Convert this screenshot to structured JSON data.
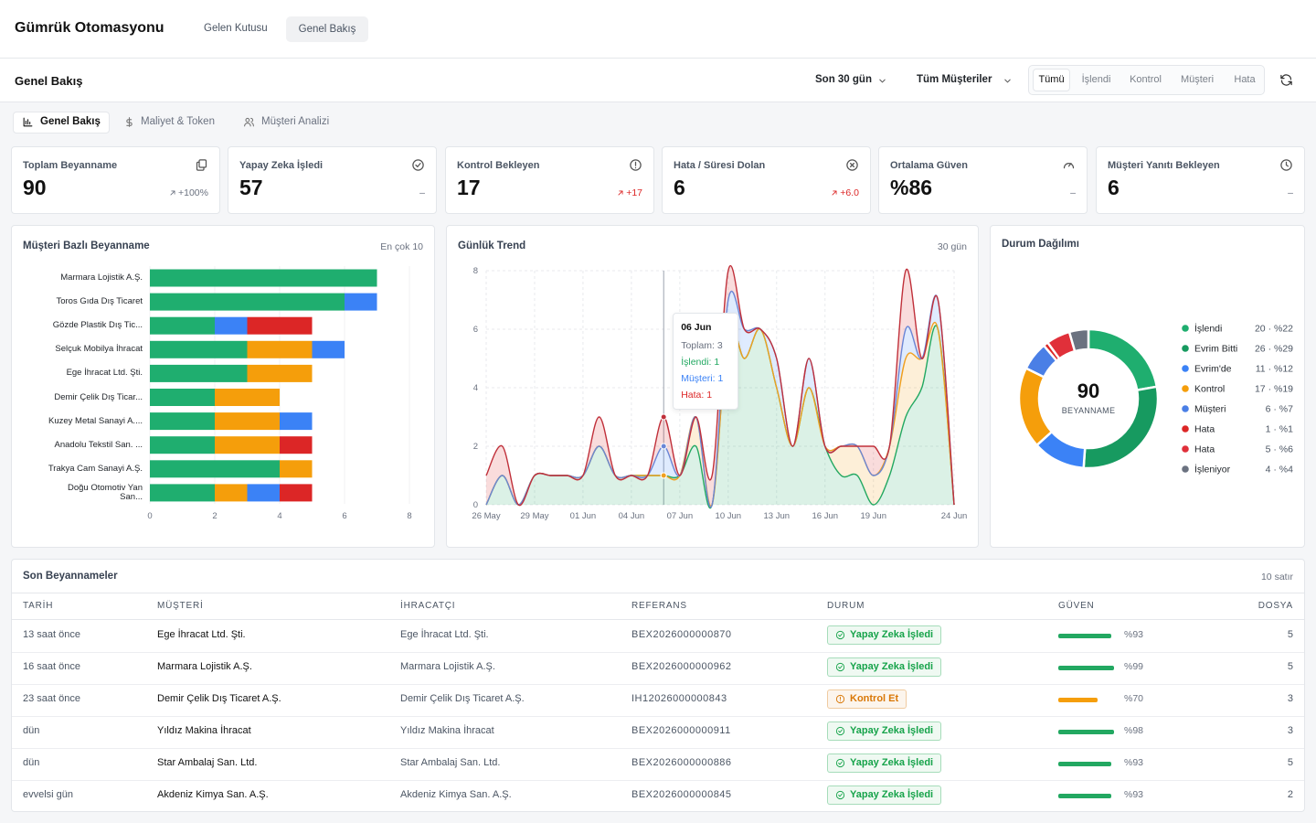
{
  "header": {
    "title": "Gümrük Otomasyonu",
    "nav": [
      "Gelen Kutusu",
      "Genel Bakış"
    ]
  },
  "toolbar": {
    "title": "Genel Bakış",
    "filters": [
      "Son 30 gün",
      "Tüm Müşteriler"
    ],
    "segments": [
      "Tümü",
      "İşlendi",
      "Kontrol",
      "Müşteri",
      "Hata"
    ]
  },
  "tabs": [
    "Genel Bakış",
    "Maliyet & Token",
    "Müşteri Analizi"
  ],
  "kpis": [
    {
      "label": "Toplam Beyanname",
      "value": 90,
      "delta": "+100%",
      "trend": "up",
      "delta_color": "#6b7280"
    },
    {
      "label": "Yapay Zeka İşledi",
      "value": 57,
      "delta": "–",
      "delta_color": "#6b7280"
    },
    {
      "label": "Kontrol Bekleyen",
      "value": 17,
      "delta": "+17",
      "trend": "up",
      "delta_color": "#dc2626"
    },
    {
      "label": "Hata / Süresi Dolan",
      "value": 6,
      "delta": "+6.0",
      "trend": "up",
      "delta_color": "#dc2626"
    },
    {
      "label": "Ortalama Güven",
      "value": "%86",
      "delta": "–",
      "delta_color": "#6b7280"
    },
    {
      "label": "Müşteri Yanıtı Bekleyen",
      "value": 6,
      "delta": "–",
      "delta_color": "#6b7280"
    }
  ],
  "chart_data": [
    {
      "type": "bar",
      "orientation": "horizontal",
      "stacked": true,
      "title": "Müşteri Bazlı Beyanname",
      "subtitle": "En çok 10",
      "categories": [
        "Marmara Lojistik A.Ş.",
        "Toros Gıda Dış Ticaret",
        "Gözde Plastik Dış Tic...",
        "Selçuk Mobilya İhracat",
        "Ege İhracat Ltd. Şti.",
        "Demir Çelik Dış Ticar...",
        "Kuzey Metal Sanayi A....",
        "Anadolu Tekstil San. ...",
        "Trakya Cam Sanayi A.Ş.",
        "Doğu Otomotiv Yan San..."
      ],
      "series": [
        {
          "color": "#1fae6f",
          "values": [
            7,
            6,
            2,
            3,
            3,
            2,
            2,
            2,
            4,
            2
          ]
        },
        {
          "color": "#f59e0b",
          "values": [
            0,
            0,
            0,
            2,
            2,
            2,
            2,
            2,
            1,
            1
          ]
        },
        {
          "color": "#3b82f6",
          "values": [
            0,
            1,
            1,
            1,
            0,
            0,
            1,
            0,
            0,
            1
          ]
        },
        {
          "color": "#dc2626",
          "values": [
            0,
            0,
            2,
            0,
            0,
            0,
            0,
            1,
            0,
            1
          ]
        }
      ],
      "xlim": [
        0,
        8
      ],
      "xticks": [
        0,
        2,
        4,
        6,
        8
      ],
      "grid": true
    },
    {
      "type": "area",
      "stacked": true,
      "title": "Günlük Trend",
      "subtitle": "30 gün",
      "categories": [
        "26 May",
        null,
        null,
        "29 May",
        null,
        null,
        "01 Jun",
        null,
        null,
        "04 Jun",
        null,
        null,
        "07 Jun",
        null,
        null,
        "10 Jun",
        null,
        null,
        "13 Jun",
        null,
        null,
        "16 Jun",
        null,
        null,
        "19 Jun",
        null,
        null,
        null,
        null,
        "24 Jun"
      ],
      "series": [
        {
          "color": "#22a861",
          "fill": "#22a861",
          "values": [
            0,
            1,
            0,
            1,
            1,
            1,
            1,
            2,
            1,
            1,
            1,
            1,
            1,
            2,
            0,
            6,
            5,
            6,
            4,
            2,
            4,
            2,
            1,
            1,
            0,
            1,
            3,
            4,
            6,
            0
          ]
        },
        {
          "color": "#f0a020",
          "fill": "#f59e0b",
          "values": [
            0,
            0,
            0,
            0,
            0,
            0,
            0,
            0,
            0,
            0,
            0,
            0,
            0,
            1,
            0,
            0,
            0,
            0,
            0,
            0,
            0,
            0,
            1,
            1,
            1,
            1,
            2,
            1,
            0,
            0
          ]
        },
        {
          "color": "#6a86d6",
          "fill": "#3b82f6",
          "values": [
            0,
            0,
            0,
            0,
            0,
            0,
            0,
            0,
            0,
            0,
            0,
            1,
            0,
            0,
            0,
            1,
            1,
            0,
            1,
            0,
            1,
            0,
            0,
            0,
            0,
            0,
            1,
            0,
            1,
            0
          ]
        },
        {
          "color": "#c0303a",
          "fill": "#dc2626",
          "values": [
            1,
            1,
            0,
            0,
            0,
            0,
            0,
            1,
            0,
            0,
            0,
            1,
            0,
            0,
            1,
            1,
            0,
            0,
            0,
            0,
            0,
            0,
            0,
            0,
            1,
            0,
            2,
            0,
            0,
            0
          ]
        }
      ],
      "ylim": [
        0,
        8
      ],
      "yticks": [
        0,
        2,
        4,
        6,
        8
      ],
      "grid": true,
      "tooltip": {
        "title": "06 Jun",
        "lines": [
          "Toplam: 3",
          "İşlendi: 1",
          "Müşteri: 1",
          "Hata: 1"
        ],
        "line_colors": [
          "#6b7280",
          "#22a861",
          "#3b82f6",
          "#dc2626"
        ]
      }
    },
    {
      "type": "donut",
      "title": "Durum Dağılımı",
      "center_value": 90,
      "center_label": "BEYANNAME",
      "categories": [
        "İşlendi",
        "Evrim Bitti",
        "Evrim'de",
        "Kontrol",
        "Müşteri",
        "Hata",
        "Hata",
        "İşleniyor"
      ],
      "values": [
        20,
        26,
        11,
        17,
        6,
        1,
        5,
        4
      ],
      "value_labels": [
        "20 · %22",
        "26 · %29",
        "11 · %12",
        "17 · %19",
        "6 · %7",
        "1 · %1",
        "5 · %6",
        "4 · %4"
      ],
      "colors": [
        "#1fae6f",
        "#179a60",
        "#3b82f6",
        "#f59e0b",
        "#4a7fe6",
        "#dc2626",
        "#e0303a",
        "#6b7280"
      ]
    }
  ],
  "table": {
    "title": "Son Beyannameler",
    "count": "10 satır",
    "columns": [
      "TARİH",
      "MÜŞTERİ",
      "İHRACATÇI",
      "REFERANS",
      "DURUM",
      "GÜVEN",
      "DOSYA"
    ],
    "confidence_scale": [
      0,
      100
    ],
    "rows": [
      {
        "date": "13 saat önce",
        "customer": "Ege İhracat Ltd. Şti.",
        "exporter": "Ege İhracat Ltd. Şti.",
        "reference": "BEX2026000000870",
        "status": "Yapay Zeka İşledi",
        "status_color": "#16a34a",
        "confidence": 93,
        "confidence_label": "%93",
        "files": 5
      },
      {
        "date": "16 saat önce",
        "customer": "Marmara Lojistik A.Ş.",
        "exporter": "Marmara Lojistik A.Ş.",
        "reference": "BEX2026000000962",
        "status": "Yapay Zeka İşledi",
        "status_color": "#16a34a",
        "confidence": 99,
        "confidence_label": "%99",
        "files": 5
      },
      {
        "date": "23 saat önce",
        "customer": "Demir Çelik Dış Ticaret A.Ş.",
        "exporter": "Demir Çelik Dış Ticaret A.Ş.",
        "reference": "IH12026000000843",
        "status": "Kontrol Et",
        "status_color": "#d97706",
        "confidence": 70,
        "confidence_label": "%70",
        "files": 3
      },
      {
        "date": "dün",
        "customer": "Yıldız Makina İhracat",
        "exporter": "Yıldız Makina İhracat",
        "reference": "BEX2026000000911",
        "status": "Yapay Zeka İşledi",
        "status_color": "#16a34a",
        "confidence": 98,
        "confidence_label": "%98",
        "files": 3
      },
      {
        "date": "dün",
        "customer": "Star Ambalaj San. Ltd.",
        "exporter": "Star Ambalaj San. Ltd.",
        "reference": "BEX2026000000886",
        "status": "Yapay Zeka İşledi",
        "status_color": "#16a34a",
        "confidence": 93,
        "confidence_label": "%93",
        "files": 5
      },
      {
        "date": "evvelsi gün",
        "customer": "Akdeniz Kimya San. A.Ş.",
        "exporter": "Akdeniz Kimya San. A.Ş.",
        "reference": "BEX2026000000845",
        "status": "Yapay Zeka İşledi",
        "status_color": "#16a34a",
        "confidence": 93,
        "confidence_label": "%93",
        "files": 2
      }
    ]
  }
}
